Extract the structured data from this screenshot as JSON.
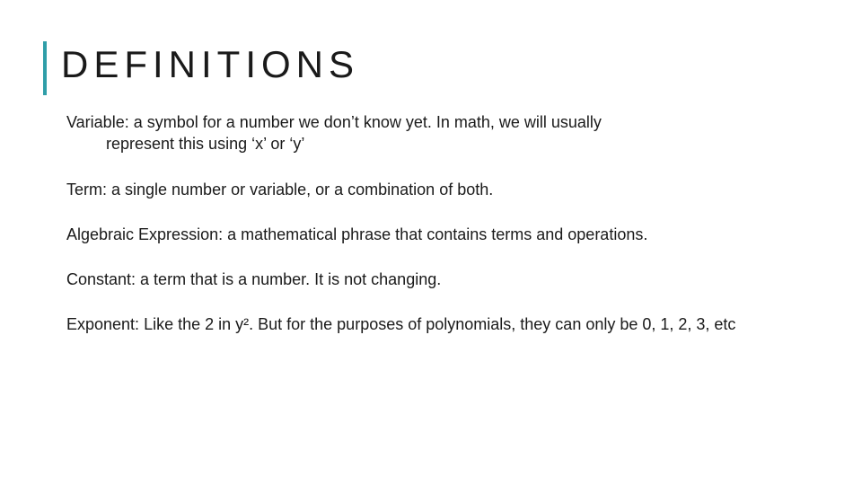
{
  "slide": {
    "title": "DEFINITIONS",
    "accent_color": "#2f9ea8",
    "title_fontsize": 42,
    "title_letter_spacing": 6,
    "body_fontsize": 18,
    "text_color": "#1a1a1a",
    "background_color": "#ffffff",
    "definitions": [
      {
        "line1": "Variable: a symbol for a number we don’t know yet. In math, we will usually",
        "line2": "represent this using ‘x’ or ‘y’",
        "hanging_indent": true
      },
      {
        "line1": "Term: a single number or variable, or a combination of both.",
        "line2": "",
        "hanging_indent": false
      },
      {
        "line1": "Algebraic Expression: a mathematical phrase that contains terms and operations.",
        "line2": "",
        "hanging_indent": false
      },
      {
        "line1": "Constant: a term that is a number. It is not changing.",
        "line2": "",
        "hanging_indent": false
      },
      {
        "line1": "Exponent: Like the 2 in y². But for the purposes of polynomials, they can only be 0, 1, 2, 3, etc",
        "line2": "",
        "hanging_indent": false
      }
    ]
  }
}
